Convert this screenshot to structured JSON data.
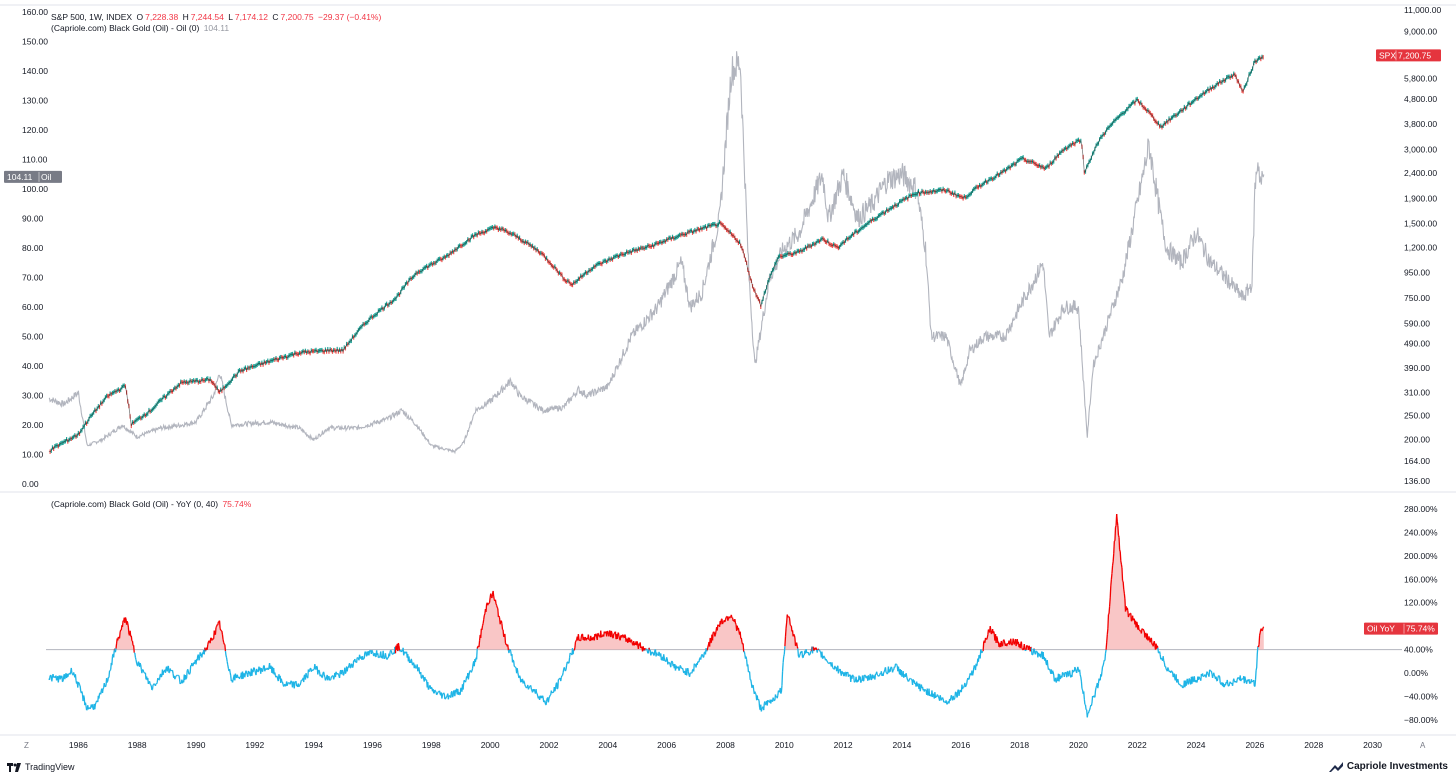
{
  "legend": {
    "spx": {
      "title": "S&P 500, 1W, INDEX",
      "o_label": "O",
      "o_val": "7,228.38",
      "h_label": "H",
      "h_val": "7,244.54",
      "l_label": "L",
      "l_val": "7,174.12",
      "c_label": "C",
      "c_val": "7,200.75",
      "chg": "−29.37 (−0.41%)"
    },
    "oil": {
      "title": "(Capriole.com) Black Gold (Oil) - Oil (0)",
      "value": "104.11"
    },
    "yoy": {
      "title": "(Capriole.com) Black Gold (Oil) - YoY (0, 40)",
      "value": "75.74%"
    }
  },
  "badges": {
    "oil_left": {
      "value": "104.11",
      "name": "Oil"
    },
    "spx_right": {
      "name": "SPX",
      "value": "7,200.75"
    },
    "yoy_right": {
      "name": "Oil YoY",
      "value": "75.74%"
    }
  },
  "footer": {
    "brand_left": "TradingView",
    "brand_right": "Capriole Investments",
    "corner_left": "Z",
    "corner_right": "A"
  },
  "colors": {
    "spx_up": "#26a69a",
    "spx_down": "#ef5350",
    "oil_line": "#b2b5be",
    "yoy_low": "#1eb4e6",
    "yoy_high": "#f20000",
    "yoy_fill": "#f7b3b3",
    "badge_red": "#e5353e",
    "badge_gray": "#787b86"
  },
  "chart_data": [
    {
      "type": "line",
      "title": "S&P 500, 1W, INDEX",
      "name": "SPX",
      "scale": "log",
      "y_ticks": [
        "11,000.00",
        "9,000.00",
        "7,200.00",
        "5,800.00",
        "4,800.00",
        "3,800.00",
        "3,000.00",
        "2,400.00",
        "1,900.00",
        "1,500.00",
        "1,200.00",
        "950.00",
        "750.00",
        "590.00",
        "490.00",
        "390.00",
        "310.00",
        "250.00",
        "200.00",
        "164.00",
        "136.00"
      ],
      "x": [
        1985.0,
        1986.0,
        1987.0,
        1987.6,
        1987.8,
        1988.5,
        1989.5,
        1990.5,
        1990.8,
        1991.5,
        1992.5,
        1993.5,
        1994.5,
        1995.0,
        1995.8,
        1996.8,
        1997.5,
        1998.5,
        1999.5,
        2000.2,
        2000.8,
        2001.7,
        2002.5,
        2002.8,
        2003.5,
        2004.5,
        2005.5,
        2006.5,
        2007.8,
        2008.5,
        2008.9,
        2009.2,
        2009.8,
        2010.5,
        2011.3,
        2011.8,
        2012.5,
        2013.5,
        2014.5,
        2015.5,
        2016.1,
        2016.8,
        2017.5,
        2018.1,
        2018.9,
        2019.5,
        2020.1,
        2020.2,
        2020.8,
        2021.5,
        2022.0,
        2022.8,
        2023.5,
        2024.5,
        2025.3,
        2025.6,
        2026.0,
        2026.3
      ],
      "values": [
        180,
        210,
        300,
        330,
        230,
        265,
        340,
        350,
        310,
        380,
        415,
        450,
        460,
        460,
        600,
        750,
        950,
        1100,
        1350,
        1450,
        1350,
        1150,
        900,
        850,
        1000,
        1130,
        1220,
        1350,
        1500,
        1250,
        850,
        700,
        1100,
        1150,
        1300,
        1200,
        1400,
        1700,
        2000,
        2050,
        1900,
        2200,
        2450,
        2750,
        2500,
        3000,
        3300,
        2400,
        3400,
        4200,
        4750,
        3700,
        4300,
        5300,
        6050,
        5100,
        6800,
        7200
      ]
    },
    {
      "type": "line",
      "title": "(Capriole.com) Black Gold (Oil) - Oil (0)",
      "name": "Oil",
      "y_ticks": [
        "160.00",
        "150.00",
        "140.00",
        "130.00",
        "120.00",
        "110.00",
        "100.00",
        "90.00",
        "80.00",
        "70.00",
        "60.00",
        "50.00",
        "40.00",
        "30.00",
        "20.00",
        "10.00",
        "0.00"
      ],
      "ylim": [
        0,
        160
      ],
      "x": [
        1985.0,
        1985.5,
        1986.0,
        1986.3,
        1986.8,
        1987.5,
        1988.0,
        1988.8,
        1989.5,
        1990.0,
        1990.6,
        1990.8,
        1991.2,
        1992.5,
        1993.5,
        1994.0,
        1994.5,
        1995.5,
        1996.5,
        1997.0,
        1997.5,
        1998.0,
        1998.8,
        1999.1,
        1999.5,
        2000.0,
        2000.7,
        2001.0,
        2001.8,
        2002.5,
        2003.0,
        2003.3,
        2004.0,
        2004.8,
        2005.7,
        2006.5,
        2006.8,
        2007.2,
        2007.8,
        2008.2,
        2008.5,
        2008.8,
        2009.0,
        2009.5,
        2010.0,
        2010.5,
        2011.3,
        2011.5,
        2012.0,
        2012.5,
        2013.0,
        2013.5,
        2014.0,
        2014.5,
        2014.8,
        2015.0,
        2015.5,
        2016.0,
        2016.3,
        2016.8,
        2017.5,
        2018.0,
        2018.8,
        2019.0,
        2019.5,
        2020.0,
        2020.3,
        2020.5,
        2021.0,
        2021.5,
        2022.0,
        2022.4,
        2022.8,
        2023.0,
        2023.5,
        2024.0,
        2024.5,
        2025.0,
        2025.6,
        2025.9,
        2026.0,
        2026.1,
        2026.2,
        2026.3
      ],
      "values": [
        29,
        27,
        31,
        13,
        15,
        20,
        16,
        19,
        20,
        21,
        30,
        38,
        20,
        21,
        19,
        15,
        19,
        19,
        22,
        25,
        20,
        13,
        11,
        14,
        25,
        28,
        35,
        30,
        25,
        26,
        32,
        30,
        33,
        50,
        60,
        75,
        60,
        65,
        90,
        140,
        143,
        70,
        40,
        70,
        80,
        85,
        105,
        90,
        105,
        90,
        95,
        103,
        105,
        100,
        80,
        50,
        50,
        33,
        45,
        50,
        50,
        60,
        75,
        50,
        60,
        60,
        16,
        40,
        55,
        70,
        95,
        115,
        90,
        80,
        75,
        85,
        75,
        70,
        63,
        68,
        100,
        110,
        102,
        104
      ]
    },
    {
      "type": "area",
      "title": "(Capriole.com) Black Gold (Oil) - YoY (0, 40)",
      "name": "Oil YoY",
      "y_ticks": [
        "280.00%",
        "240.00%",
        "200.00%",
        "160.00%",
        "120.00%",
        "80.00%",
        "40.00%",
        "0.00%",
        "−40.00%",
        "−80.00%"
      ],
      "ylim": [
        -90,
        300
      ],
      "threshold": 40,
      "x": [
        1985.0,
        1985.5,
        1985.8,
        1986.3,
        1986.6,
        1987.0,
        1987.3,
        1987.6,
        1988.0,
        1988.5,
        1989.0,
        1989.5,
        1990.0,
        1990.4,
        1990.8,
        1991.2,
        1991.8,
        1992.5,
        1993.0,
        1993.5,
        1994.0,
        1994.5,
        1995.0,
        1995.5,
        1996.0,
        1996.5,
        1996.9,
        1997.5,
        1998.0,
        1998.5,
        1999.0,
        1999.5,
        1999.9,
        2000.1,
        2000.5,
        2001.0,
        2001.5,
        2001.9,
        2002.3,
        2002.7,
        2003.0,
        2003.5,
        2004.0,
        2004.5,
        2004.8,
        2005.3,
        2005.8,
        2006.3,
        2006.8,
        2007.3,
        2007.8,
        2008.2,
        2008.5,
        2008.9,
        2009.2,
        2009.5,
        2009.9,
        2010.1,
        2010.5,
        2011.0,
        2011.3,
        2011.7,
        2012.3,
        2012.8,
        2013.3,
        2013.8,
        2014.3,
        2014.8,
        2015.2,
        2015.5,
        2016.0,
        2016.5,
        2017.0,
        2017.3,
        2017.8,
        2018.3,
        2018.8,
        2019.2,
        2019.8,
        2020.0,
        2020.3,
        2020.6,
        2020.9,
        2021.0,
        2021.3,
        2021.6,
        2022.0,
        2022.3,
        2022.7,
        2023.0,
        2023.5,
        2024.0,
        2024.5,
        2025.0,
        2025.5,
        2025.9,
        2026.0,
        2026.1,
        2026.2,
        2026.3
      ],
      "values": [
        -8,
        -10,
        5,
        -60,
        -55,
        -10,
        50,
        95,
        20,
        -25,
        10,
        -15,
        20,
        45,
        85,
        -10,
        0,
        10,
        -20,
        -20,
        10,
        -10,
        0,
        25,
        35,
        30,
        45,
        10,
        -30,
        -40,
        -30,
        20,
        120,
        135,
        60,
        -10,
        -30,
        -50,
        -20,
        25,
        60,
        60,
        70,
        60,
        55,
        40,
        30,
        10,
        0,
        35,
        85,
        100,
        65,
        -20,
        -60,
        -50,
        -30,
        105,
        30,
        40,
        30,
        10,
        -10,
        -10,
        0,
        10,
        -15,
        -30,
        -40,
        -50,
        -30,
        10,
        75,
        50,
        55,
        40,
        30,
        -10,
        0,
        10,
        -70,
        -30,
        20,
        80,
        270,
        110,
        80,
        65,
        40,
        10,
        -20,
        -10,
        0,
        -20,
        -10,
        -15,
        -20,
        40,
        75,
        76
      ]
    }
  ],
  "x_axis": {
    "ticks": [
      "1986",
      "1988",
      "1990",
      "1992",
      "1994",
      "1996",
      "1998",
      "2000",
      "2002",
      "2004",
      "2006",
      "2008",
      "2010",
      "2012",
      "2014",
      "2016",
      "2018",
      "2020",
      "2022",
      "2024",
      "2026",
      "2028",
      "2030"
    ]
  }
}
